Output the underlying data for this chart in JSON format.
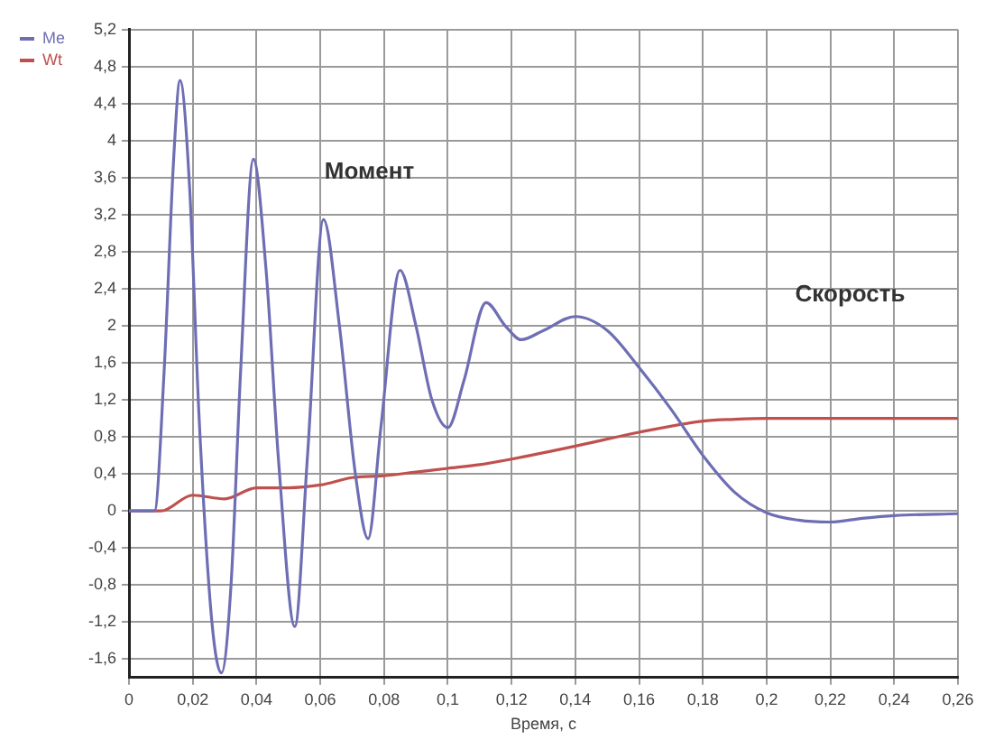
{
  "chart_data": {
    "type": "line",
    "xlabel": "Время, с",
    "xlim": [
      0,
      0.26
    ],
    "xticks": [
      {
        "value": 0,
        "label": "0"
      },
      {
        "value": 0.02,
        "label": "0,02"
      },
      {
        "value": 0.04,
        "label": "0,04"
      },
      {
        "value": 0.06,
        "label": "0,06"
      },
      {
        "value": 0.08,
        "label": "0,08"
      },
      {
        "value": 0.1,
        "label": "0,1"
      },
      {
        "value": 0.12,
        "label": "0,12"
      },
      {
        "value": 0.14,
        "label": "0,14"
      },
      {
        "value": 0.16,
        "label": "0,16"
      },
      {
        "value": 0.18,
        "label": "0,18"
      },
      {
        "value": 0.2,
        "label": "0,2"
      },
      {
        "value": 0.22,
        "label": "0,22"
      },
      {
        "value": 0.24,
        "label": "0,24"
      },
      {
        "value": 0.26,
        "label": "0,26"
      }
    ],
    "ylim": [
      -1.8,
      5.2
    ],
    "yticks": [
      {
        "value": -1.6,
        "label": "-1,6"
      },
      {
        "value": -1.2,
        "label": "-1,2"
      },
      {
        "value": -0.8,
        "label": "-0,8"
      },
      {
        "value": -0.4,
        "label": "-0,4"
      },
      0,
      {
        "value": 0.4,
        "label": "0,4"
      },
      {
        "value": 0.8,
        "label": "0,8"
      },
      {
        "value": 1.2,
        "label": "1,2"
      },
      {
        "value": 1.6,
        "label": "1,6"
      },
      2,
      {
        "value": 2.4,
        "label": "2,4"
      },
      {
        "value": 2.8,
        "label": "2,8"
      },
      {
        "value": 3.2,
        "label": "3,2"
      },
      {
        "value": 3.6,
        "label": "3,6"
      },
      4,
      {
        "value": 4.4,
        "label": "4,4"
      },
      {
        "value": 4.8,
        "label": "4,8"
      },
      {
        "value": 5.2,
        "label": "5,2"
      }
    ],
    "grid": true,
    "legend": "left",
    "marker": "none",
    "line_style": "solid",
    "annotations": [
      "Момент",
      "Скорость"
    ],
    "series": [
      {
        "name": "Me",
        "color": "#6e6eb4",
        "x": [
          0,
          0.008,
          0.011,
          0.014,
          0.016,
          0.019,
          0.022,
          0.026,
          0.029,
          0.032,
          0.035,
          0.039,
          0.043,
          0.047,
          0.052,
          0.056,
          0.061,
          0.066,
          0.071,
          0.075,
          0.079,
          0.085,
          0.09,
          0.095,
          0.1,
          0.105,
          0.112,
          0.118,
          0.123,
          0.13,
          0.14,
          0.15,
          0.16,
          0.17,
          0.18,
          0.19,
          0.2,
          0.21,
          0.22,
          0.23,
          0.24,
          0.26
        ],
        "values": [
          0,
          0,
          1.5,
          3.8,
          4.65,
          3.5,
          1,
          -1.2,
          -1.75,
          -0.8,
          1.5,
          3.8,
          2.6,
          0.5,
          -1.25,
          0.6,
          3.15,
          2,
          0.4,
          -0.3,
          0.9,
          2.6,
          2,
          1.2,
          0.9,
          1.4,
          2.25,
          2,
          1.85,
          1.95,
          2.1,
          1.95,
          1.55,
          1.1,
          0.6,
          0.2,
          -0.02,
          -0.1,
          -0.12,
          -0.08,
          -0.05,
          -0.03
        ]
      },
      {
        "name": "Wt",
        "color": "#c0504d",
        "x": [
          0,
          0.01,
          0.02,
          0.03,
          0.04,
          0.05,
          0.06,
          0.07,
          0.08,
          0.09,
          0.1,
          0.11,
          0.12,
          0.14,
          0.16,
          0.18,
          0.19,
          0.2,
          0.22,
          0.26
        ],
        "values": [
          0,
          0,
          0.17,
          0.13,
          0.25,
          0.25,
          0.28,
          0.36,
          0.38,
          0.42,
          0.46,
          0.5,
          0.56,
          0.7,
          0.85,
          0.97,
          0.99,
          1,
          1,
          1
        ]
      }
    ]
  }
}
